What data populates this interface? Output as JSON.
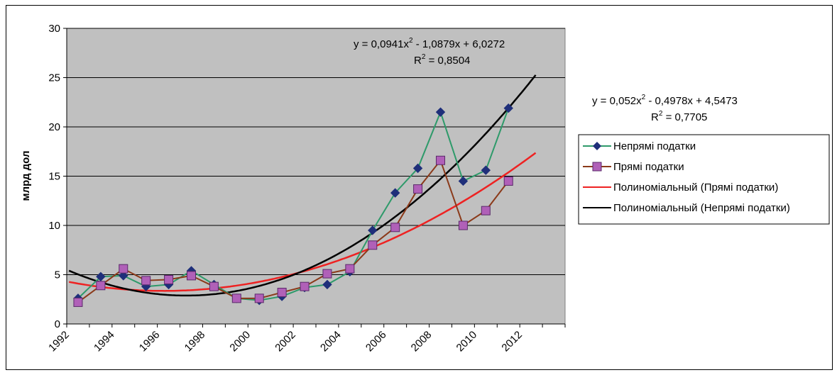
{
  "chart_data": {
    "type": "line",
    "ylabel": "млрд дол",
    "xlabel": "",
    "title": "",
    "ylim": [
      0,
      30
    ],
    "yticks": [
      0,
      5,
      10,
      15,
      20,
      25,
      30
    ],
    "xticks": [
      1992,
      1994,
      1996,
      1998,
      2000,
      2002,
      2004,
      2006,
      2008,
      2010,
      2012
    ],
    "xlim": [
      1992,
      2014
    ],
    "grid": true,
    "legend_position": "right",
    "x": [
      1993,
      1994,
      1995,
      1996,
      1997,
      1998,
      1999,
      2000,
      2001,
      2002,
      2003,
      2004,
      2005,
      2006,
      2007,
      2008,
      2009,
      2010,
      2011,
      2012
    ],
    "series": [
      {
        "name": "Непрямі податки",
        "color": "#2e9a6a",
        "marker": "diamond",
        "marker_color": "#1f2f7a",
        "values": [
          2.6,
          4.8,
          4.9,
          3.8,
          4.0,
          5.4,
          4.0,
          2.6,
          2.4,
          2.8,
          3.7,
          4.0,
          5.3,
          9.5,
          13.3,
          15.8,
          21.5,
          14.5,
          15.6,
          21.9
        ]
      },
      {
        "name": "Прямі податки",
        "color": "#8b3a1a",
        "marker": "square",
        "marker_color": "#b060b8",
        "values": [
          2.2,
          3.9,
          5.6,
          4.4,
          4.5,
          4.9,
          3.8,
          2.6,
          2.6,
          3.2,
          3.8,
          5.1,
          5.6,
          8.0,
          9.8,
          13.7,
          16.6,
          10.0,
          11.5,
          14.5
        ]
      },
      {
        "name": "Полиноміальный (Прямі податки)",
        "color": "#ee2222",
        "trend": {
          "a": 0.052,
          "b": -0.4978,
          "c": 4.5473
        }
      },
      {
        "name": "Полиноміальный (Непрямі податки)",
        "color": "#000000",
        "trend": {
          "a": 0.0941,
          "b": -1.0879,
          "c": 6.0272
        }
      }
    ],
    "annotations": [
      {
        "line1_pre": "y = 0,0941x",
        "line1_post": " - 1,0879x + 6,0272",
        "line2_pre": "R",
        "line2_post": " = 0,8504",
        "sup": "2"
      },
      {
        "line1_pre": "y = 0,052x",
        "line1_post": " - 0,4978x + 4,5473",
        "line2_pre": "R",
        "line2_post": " = 0,7705",
        "sup": "2"
      }
    ]
  }
}
